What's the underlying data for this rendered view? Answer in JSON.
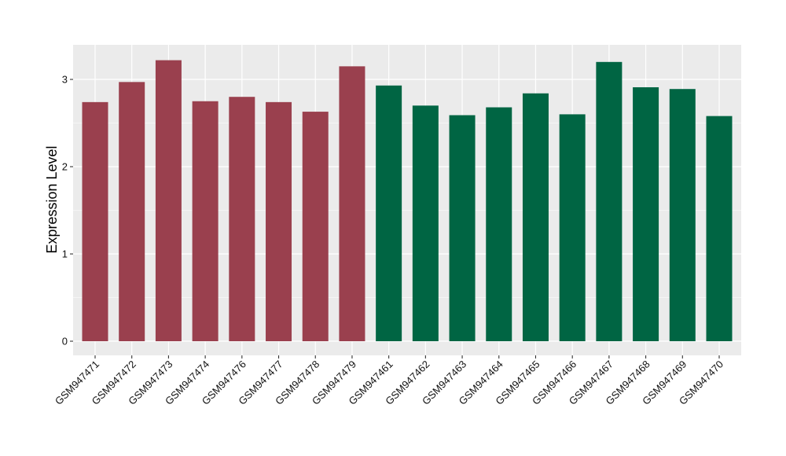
{
  "chart_data": {
    "type": "bar",
    "title": "",
    "xlabel": "",
    "ylabel": "Expression Level",
    "ylim": [
      0,
      3.4
    ],
    "y_ticks": [
      0,
      1,
      2,
      3
    ],
    "grid": true,
    "legend": "none",
    "categories": [
      "GSM947471",
      "GSM947472",
      "GSM947473",
      "GSM947474",
      "GSM947476",
      "GSM947477",
      "GSM947478",
      "GSM947479",
      "GSM947461",
      "GSM947462",
      "GSM947463",
      "GSM947464",
      "GSM947465",
      "GSM947466",
      "GSM947467",
      "GSM947468",
      "GSM947469",
      "GSM947470"
    ],
    "values": [
      2.74,
      2.97,
      3.22,
      2.75,
      2.8,
      2.74,
      2.63,
      3.15,
      2.93,
      2.7,
      2.59,
      2.68,
      2.84,
      2.6,
      3.2,
      2.91,
      2.89,
      2.58
    ],
    "bar_colors": [
      "#9A404E",
      "#9A404E",
      "#9A404E",
      "#9A404E",
      "#9A404E",
      "#9A404E",
      "#9A404E",
      "#9A404E",
      "#006543",
      "#006543",
      "#006543",
      "#006543",
      "#006543",
      "#006543",
      "#006543",
      "#006543",
      "#006543",
      "#006543"
    ],
    "panel_background": "#EBEBEB",
    "grid_color": "#FFFFFF"
  }
}
